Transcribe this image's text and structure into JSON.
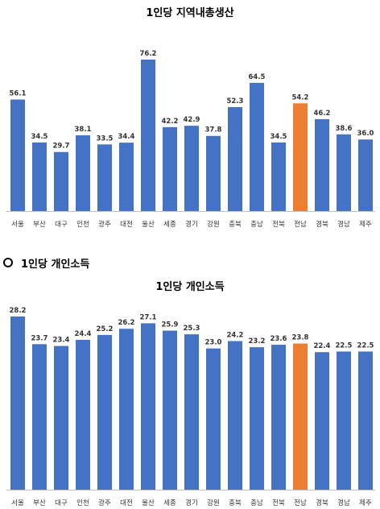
{
  "section_header": {
    "bullet_icon": "hollow-circle-bullet-icon",
    "title": "1인당 개인소득"
  },
  "colors": {
    "bar": "#4472C4",
    "highlight": "#ED7D31",
    "axis": "#BFBFBF"
  },
  "chart_data": [
    {
      "type": "bar",
      "title": "1인당 지역내총생산",
      "categories": [
        "서울",
        "부산",
        "대구",
        "인천",
        "광주",
        "대전",
        "울산",
        "세종",
        "경기",
        "강원",
        "충북",
        "충남",
        "전북",
        "전남",
        "경북",
        "경남",
        "제주"
      ],
      "values": [
        56.1,
        34.5,
        29.7,
        38.1,
        33.5,
        34.4,
        76.2,
        42.2,
        42.9,
        37.8,
        52.3,
        64.5,
        34.5,
        54.2,
        46.2,
        38.6,
        36.0
      ],
      "value_labels": [
        "56.1",
        "34.5",
        "29.7",
        "38.1",
        "33.5",
        "34.4",
        "76.2",
        "42.2",
        "42.9",
        "37.8",
        "52.3",
        "64.5",
        "34.5",
        "54.2",
        "46.2",
        "38.6",
        "36.0"
      ],
      "highlight_category": "전남",
      "xlabel": "",
      "ylabel": "",
      "ylim": [
        0,
        76.2
      ],
      "grid": false,
      "legend": "none"
    },
    {
      "type": "bar",
      "title": "1인당 개인소득",
      "categories": [
        "서울",
        "부산",
        "대구",
        "인천",
        "광주",
        "대전",
        "울산",
        "세종",
        "경기",
        "강원",
        "충북",
        "충남",
        "전북",
        "전남",
        "경북",
        "경남",
        "제주"
      ],
      "values": [
        28.2,
        23.7,
        23.4,
        24.4,
        25.2,
        26.2,
        27.1,
        25.9,
        25.3,
        23.0,
        24.2,
        23.2,
        23.6,
        23.8,
        22.4,
        22.5,
        22.5
      ],
      "value_labels": [
        "28.2",
        "23.7",
        "23.4",
        "24.4",
        "25.2",
        "26.2",
        "27.1",
        "25.9",
        "25.3",
        "23.0",
        "24.2",
        "23.2",
        "23.6",
        "23.8",
        "22.4",
        "22.5",
        "22.5"
      ],
      "highlight_category": "전남",
      "xlabel": "",
      "ylabel": "",
      "ylim": [
        0,
        28.2
      ],
      "grid": false,
      "legend": "none"
    }
  ]
}
